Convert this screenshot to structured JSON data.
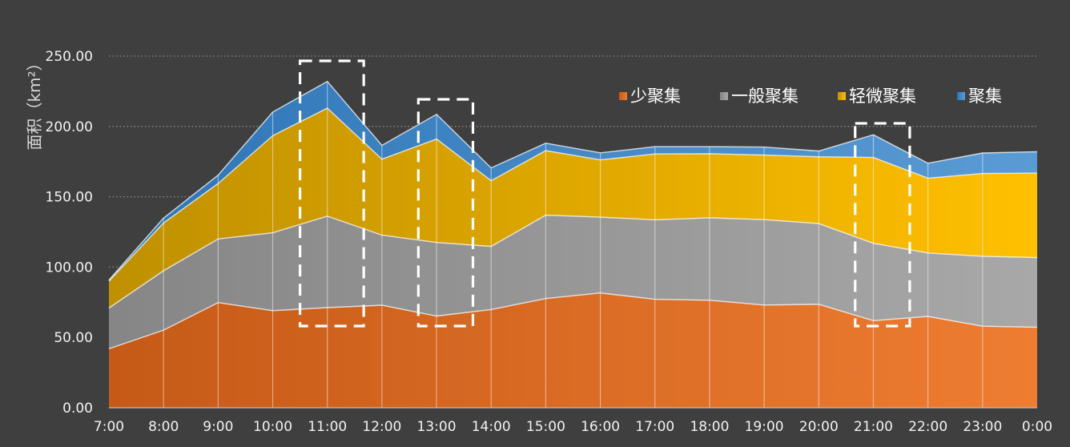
{
  "chart_data": {
    "type": "area",
    "stacked": true,
    "title": "",
    "xlabel": "",
    "ylabel": "面积（km²）",
    "categories": [
      "7:00",
      "8:00",
      "9:00",
      "10:00",
      "11:00",
      "12:00",
      "13:00",
      "14:00",
      "15:00",
      "16:00",
      "17:00",
      "18:00",
      "19:00",
      "20:00",
      "21:00",
      "22:00",
      "23:00",
      "0:00"
    ],
    "ylim": [
      0,
      250
    ],
    "ytick_labels": [
      "0.00",
      "50.00",
      "100.00",
      "150.00",
      "200.00",
      "250.00"
    ],
    "grid": true,
    "legend_position": "top-right",
    "series": [
      {
        "name": "少聚集",
        "color": "#e06a25",
        "values": [
          41.9,
          55.2,
          74.8,
          69.0,
          71.2,
          72.9,
          65.2,
          69.8,
          77.6,
          81.6,
          77.1,
          76.4,
          73.0,
          73.6,
          61.9,
          64.9,
          58.0,
          57.2
        ]
      },
      {
        "name": "一般聚集",
        "color": "#9c9c9c",
        "values": [
          29.0,
          42.2,
          45.2,
          55.4,
          65.0,
          49.8,
          52.3,
          44.9,
          59.3,
          53.9,
          56.5,
          58.6,
          60.7,
          57.3,
          55.0,
          45.1,
          49.7,
          49.5
        ]
      },
      {
        "name": "轻微聚集",
        "color": "#f5b800",
        "values": [
          19.1,
          34.0,
          39.4,
          69.0,
          76.8,
          54.0,
          73.5,
          46.7,
          45.9,
          40.7,
          46.8,
          45.6,
          45.9,
          47.5,
          61.0,
          53.2,
          58.8,
          60.1
        ]
      },
      {
        "name": "聚集",
        "color": "#4a8ccf",
        "values": [
          0.8,
          3.4,
          6.0,
          16.8,
          19.0,
          9.8,
          17.6,
          9.1,
          5.3,
          5.0,
          5.2,
          5.0,
          5.7,
          4.1,
          16.2,
          10.6,
          14.6,
          15.2
        ]
      }
    ],
    "highlight_boxes": [
      {
        "from": "10:30",
        "to": "11:40"
      },
      {
        "from": "12:40",
        "to": "13:40"
      },
      {
        "from": "20:40",
        "to": "21:40"
      }
    ]
  }
}
